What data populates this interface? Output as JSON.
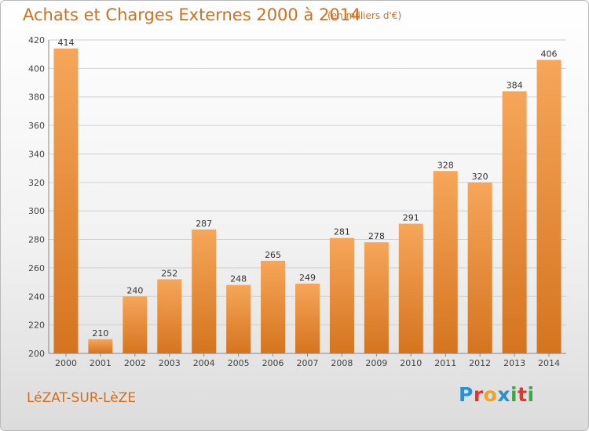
{
  "header": {
    "title": "Achats et Charges Externes 2000 à 2014",
    "subtitle": "(en milliers d'€)"
  },
  "footer": {
    "place": "LéZAT-SUR-LèZE",
    "logo_text": "Proxiti",
    "logo_colors": [
      "#2b8fd0",
      "#e7332b",
      "#f0a31c",
      "#2b8fd0",
      "#3aa84a",
      "#e7332b",
      "#3aa84a"
    ]
  },
  "colors": {
    "bar_top": "#f6a65a",
    "bar_bottom": "#d5741f",
    "text": "#d36f1e",
    "grid": "#d0d0d0",
    "axis": "#888888"
  },
  "chart_data": {
    "type": "bar",
    "categories": [
      "2000",
      "2001",
      "2002",
      "2003",
      "2004",
      "2005",
      "2006",
      "2007",
      "2008",
      "2009",
      "2010",
      "2011",
      "2012",
      "2013",
      "2014"
    ],
    "values": [
      414,
      210,
      240,
      252,
      287,
      248,
      265,
      249,
      281,
      278,
      291,
      328,
      320,
      384,
      406
    ],
    "ylim": [
      200,
      420
    ],
    "yticks": [
      200,
      220,
      240,
      260,
      280,
      300,
      320,
      340,
      360,
      380,
      400,
      420
    ],
    "grid": true
  }
}
